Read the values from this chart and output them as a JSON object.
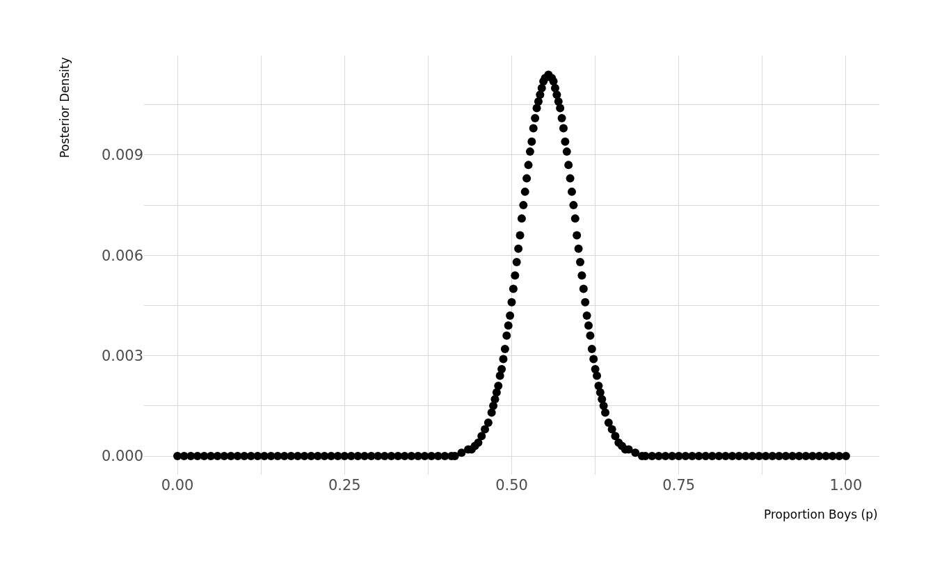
{
  "chart_data": {
    "type": "scatter",
    "xlabel": "Proportion Boys (p)",
    "ylabel": "Posterior Density",
    "x": [
      0,
      0.01,
      0.02,
      0.03,
      0.04,
      0.05,
      0.06,
      0.07,
      0.08,
      0.09,
      0.1,
      0.11,
      0.12,
      0.13,
      0.14,
      0.15,
      0.16,
      0.17,
      0.18,
      0.19,
      0.2,
      0.21,
      0.22,
      0.23,
      0.24,
      0.25,
      0.26,
      0.27,
      0.28,
      0.29,
      0.3,
      0.31,
      0.32,
      0.33,
      0.34,
      0.35,
      0.36,
      0.37,
      0.38,
      0.39,
      0.4,
      0.41,
      0.415,
      0.425,
      0.435,
      0.44,
      0.445,
      0.45,
      0.455,
      0.46,
      0.465,
      0.47,
      0.4725,
      0.475,
      0.4775,
      0.48,
      0.4825,
      0.485,
      0.4875,
      0.49,
      0.4925,
      0.495,
      0.4975,
      0.5,
      0.5025,
      0.505,
      0.5075,
      0.51,
      0.5125,
      0.515,
      0.5175,
      0.52,
      0.5225,
      0.525,
      0.5275,
      0.53,
      0.5325,
      0.535,
      0.5375,
      0.54,
      0.5425,
      0.545,
      0.5475,
      0.55,
      0.555,
      0.56,
      0.5625,
      0.565,
      0.5675,
      0.57,
      0.5725,
      0.575,
      0.5775,
      0.58,
      0.5825,
      0.585,
      0.5875,
      0.59,
      0.5925,
      0.595,
      0.5975,
      0.6,
      0.6025,
      0.605,
      0.6075,
      0.61,
      0.6125,
      0.615,
      0.6175,
      0.62,
      0.6225,
      0.625,
      0.6275,
      0.63,
      0.6325,
      0.635,
      0.6375,
      0.64,
      0.645,
      0.65,
      0.655,
      0.66,
      0.665,
      0.67,
      0.675,
      0.685,
      0.695,
      0.7,
      0.71,
      0.72,
      0.73,
      0.74,
      0.75,
      0.76,
      0.77,
      0.78,
      0.79,
      0.8,
      0.81,
      0.82,
      0.83,
      0.84,
      0.85,
      0.86,
      0.87,
      0.88,
      0.89,
      0.9,
      0.91,
      0.92,
      0.93,
      0.94,
      0.95,
      0.96,
      0.97,
      0.98,
      0.99,
      1
    ],
    "series": [
      {
        "color": "#000000",
        "values": [
          0,
          0,
          0,
          0,
          0,
          0,
          0,
          0,
          0,
          0,
          0,
          0,
          0,
          0,
          0,
          0,
          0,
          0,
          0,
          0,
          0,
          0,
          0,
          0,
          0,
          0,
          0,
          0,
          0,
          0,
          0,
          0,
          0,
          0,
          0,
          0,
          0,
          0,
          0,
          0,
          0,
          0,
          0,
          0.0001,
          0.0002,
          0.0002,
          0.0003,
          0.0004,
          0.0006,
          0.0008,
          0.001,
          0.0013,
          0.0015,
          0.0017,
          0.0019,
          0.0021,
          0.0024,
          0.0026,
          0.0029,
          0.0032,
          0.0036,
          0.0039,
          0.0042,
          0.0046,
          0.005,
          0.0054,
          0.0058,
          0.0062,
          0.0066,
          0.0071,
          0.0075,
          0.0079,
          0.0083,
          0.0087,
          0.0091,
          0.0094,
          0.0098,
          0.0101,
          0.0104,
          0.0106,
          0.0108,
          0.011,
          0.0112,
          0.0113,
          0.0114,
          0.0113,
          0.0112,
          0.011,
          0.0108,
          0.0106,
          0.0104,
          0.0101,
          0.0098,
          0.0094,
          0.0091,
          0.0087,
          0.0083,
          0.0079,
          0.0075,
          0.0071,
          0.0066,
          0.0062,
          0.0058,
          0.0054,
          0.005,
          0.0046,
          0.0042,
          0.0039,
          0.0036,
          0.0032,
          0.0029,
          0.0026,
          0.0024,
          0.0021,
          0.0019,
          0.0017,
          0.0015,
          0.0013,
          0.001,
          0.0008,
          0.0006,
          0.0004,
          0.0003,
          0.0002,
          0.0002,
          0.0001,
          0,
          0,
          0,
          0,
          0,
          0,
          0,
          0,
          0,
          0,
          0,
          0,
          0,
          0,
          0,
          0,
          0,
          0,
          0,
          0,
          0,
          0,
          0,
          0,
          0,
          0,
          0,
          0,
          0,
          0,
          0,
          0
        ]
      }
    ],
    "xlim": [
      -0.05,
      1.05
    ],
    "xticks": [
      {
        "value": 0,
        "label": "0.00"
      },
      {
        "value": 0.125,
        "label": null
      },
      {
        "value": 0.25,
        "label": "0.25"
      },
      {
        "value": 0.375,
        "label": null
      },
      {
        "value": 0.5,
        "label": "0.50"
      },
      {
        "value": 0.625,
        "label": null
      },
      {
        "value": 0.75,
        "label": "0.75"
      },
      {
        "value": 0.875,
        "label": null
      },
      {
        "value": 1,
        "label": "1.00"
      }
    ],
    "ylim": [
      -0.00056,
      0.01197
    ],
    "yticks": [
      {
        "value": 0,
        "label": "0.000"
      },
      {
        "value": 0.0015,
        "label": null
      },
      {
        "value": 0.003,
        "label": "0.003"
      },
      {
        "value": 0.0045,
        "label": null
      },
      {
        "value": 0.006,
        "label": "0.006"
      },
      {
        "value": 0.0075,
        "label": null
      },
      {
        "value": 0.009,
        "label": "0.009"
      },
      {
        "value": 0.0105,
        "label": null
      }
    ],
    "grid": true,
    "marker": "circle"
  }
}
